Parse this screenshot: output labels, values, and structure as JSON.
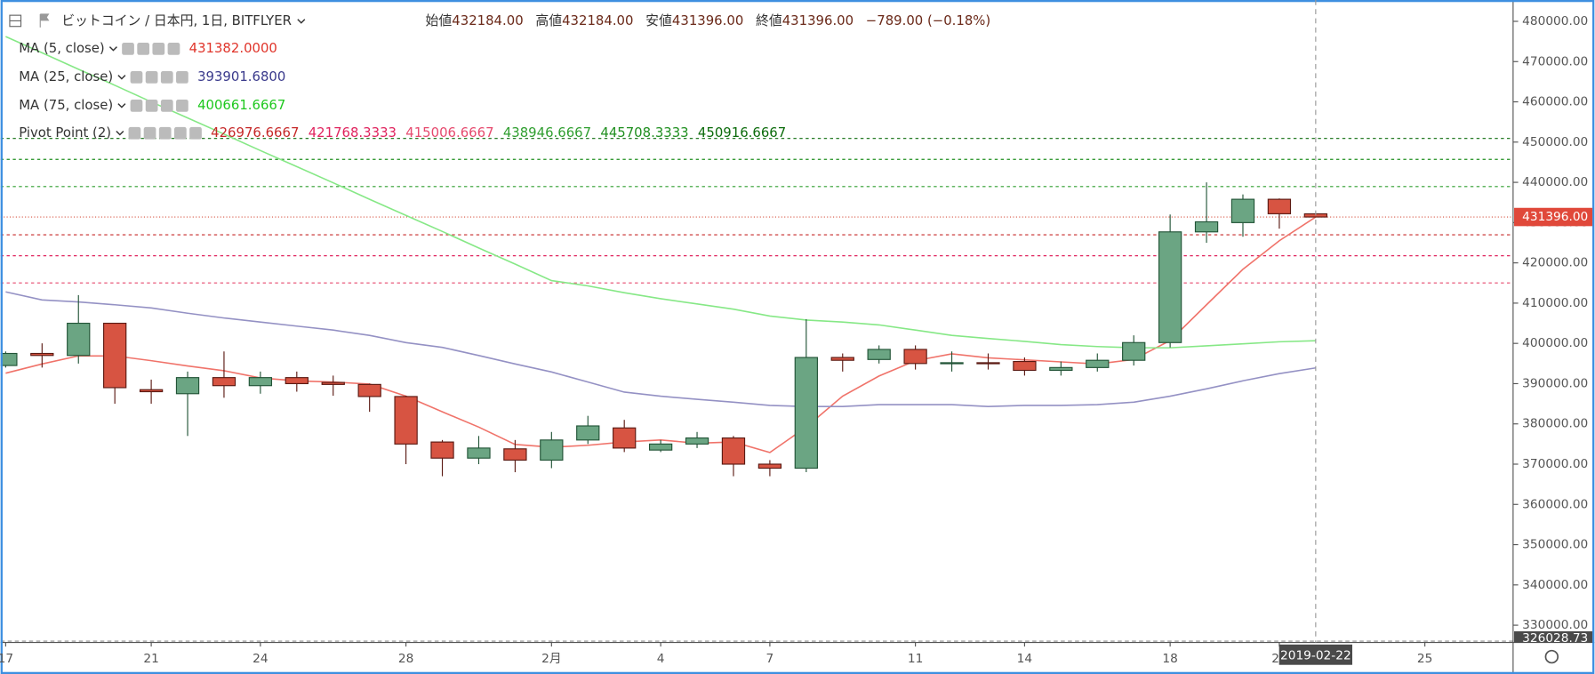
{
  "chart_data": {
    "type": "candlestick",
    "title": "ビットコイン / 日本円, 1日, BITFLYER",
    "ohlc_header": [
      {
        "label": "始値",
        "value": "432184.00"
      },
      {
        "label": "高値",
        "value": "432184.00"
      },
      {
        "label": "安値",
        "value": "431396.00"
      },
      {
        "label": "終値",
        "value": "431396.00"
      }
    ],
    "change": "−789.00 (−0.18%)",
    "categories": [
      "17",
      null,
      null,
      null,
      "21",
      null,
      null,
      "24",
      null,
      null,
      null,
      "28",
      null,
      null,
      null,
      "2月",
      null,
      null,
      "4",
      null,
      null,
      "7",
      null,
      null,
      null,
      "11",
      null,
      null,
      "14",
      null,
      null,
      null,
      "18",
      null,
      null,
      "21",
      null,
      null,
      null,
      "25",
      null,
      null
    ],
    "open": [
      394500,
      397500,
      397000,
      405000,
      388500,
      387500,
      391500,
      389500,
      391500,
      390300,
      389800,
      386800,
      375500,
      371500,
      373800,
      371000,
      376000,
      379000,
      373500,
      375000,
      376500,
      370000,
      369000,
      396500,
      396000,
      398500,
      395000,
      395200,
      395500,
      393300,
      394000,
      395800,
      400200,
      427700,
      430000,
      435800,
      432184,
      null,
      null,
      null,
      null,
      null
    ],
    "high": [
      398000,
      400000,
      412000,
      405000,
      391000,
      393000,
      398000,
      393000,
      393000,
      392000,
      390000,
      387000,
      376000,
      377000,
      376000,
      378000,
      382000,
      381000,
      376000,
      378000,
      377000,
      371000,
      406000,
      397500,
      399500,
      399500,
      398000,
      397500,
      396500,
      395500,
      397500,
      402000,
      432000,
      440000,
      437000,
      436000,
      432184,
      null,
      null,
      null,
      null,
      null
    ],
    "low": [
      394000,
      394000,
      395000,
      385000,
      385000,
      377000,
      386500,
      387500,
      388000,
      387000,
      383000,
      370000,
      367000,
      370000,
      368000,
      369000,
      375000,
      373000,
      373000,
      374000,
      367000,
      367000,
      368000,
      393000,
      395000,
      393500,
      393000,
      393500,
      392000,
      392000,
      393000,
      394500,
      399000,
      425000,
      426500,
      428500,
      431396,
      null,
      null,
      null,
      null,
      null
    ],
    "close": [
      397500,
      397000,
      405000,
      389000,
      388000,
      391500,
      389500,
      391500,
      390000,
      389800,
      386800,
      375000,
      371500,
      374000,
      371000,
      376000,
      379500,
      374000,
      375000,
      376500,
      370000,
      369000,
      396500,
      395800,
      398500,
      395000,
      395200,
      395000,
      393300,
      394000,
      395800,
      400200,
      427700,
      430200,
      435800,
      432200,
      431396,
      null,
      null,
      null,
      null,
      null
    ],
    "up_color": "#6ba583",
    "down_color": "#d75442",
    "indicators": [
      {
        "name": "MA (5, close)",
        "value_label": "431382.0000",
        "color": "#e0352b",
        "line_color": "#f0736a",
        "values": [
          392600,
          394900,
          396900,
          396900,
          395700,
          394400,
          393200,
          391400,
          390700,
          390400,
          389900,
          386900,
          383000,
          379200,
          374900,
          374200,
          374700,
          375500,
          376000,
          375200,
          375500,
          372900,
          379200,
          386900,
          391900,
          395700,
          397400,
          396400,
          395900,
          395400,
          394900,
          396000,
          400700,
          409600,
          418400,
          425500,
          431382,
          null,
          null,
          null,
          null,
          null
        ]
      },
      {
        "name": "MA (25, close)",
        "value_label": "393901.6800",
        "color": "#3a3a8c",
        "line_color": "#9491c4",
        "values": [
          412800,
          410800,
          410300,
          409600,
          408800,
          407500,
          406300,
          405300,
          404300,
          403300,
          402000,
          400200,
          399000,
          397000,
          394900,
          392900,
          390400,
          387900,
          386900,
          386100,
          385400,
          384600,
          384300,
          384300,
          384800,
          384800,
          384800,
          384300,
          384600,
          384600,
          384800,
          385400,
          386900,
          388700,
          390700,
          392500,
          393901.68,
          null,
          null,
          null,
          null,
          null
        ]
      },
      {
        "name": "MA (75, close)",
        "value_label": "400661.6667",
        "color": "#1ec81e",
        "line_color": "#86e886",
        "values": [
          476200,
          472200,
          468100,
          464100,
          460000,
          456000,
          452000,
          447900,
          443900,
          439900,
          435800,
          431800,
          427800,
          423700,
          419700,
          415600,
          414300,
          412600,
          411100,
          409800,
          408500,
          406800,
          405800,
          405300,
          404600,
          403300,
          402000,
          401200,
          400500,
          399700,
          399200,
          398900,
          398900,
          399400,
          399900,
          400400,
          400661.6667,
          null,
          null,
          null,
          null,
          null
        ]
      }
    ],
    "pivot": {
      "name": "Pivot Point (2)",
      "levels": [
        426976.6667,
        421768.3333,
        415006.6667,
        438946.6667,
        445708.3333,
        450916.6667
      ],
      "colors": [
        "#c62828",
        "#e0245e",
        "#e64a6e",
        "#2e9e2e",
        "#1f8f1f",
        "#0b6b0b"
      ]
    },
    "ylim": [
      325700,
      485300
    ],
    "yticks": [
      {
        "value": 330000,
        "label": "330000.00"
      },
      {
        "value": 340000,
        "label": "340000.00"
      },
      {
        "value": 350000,
        "label": "350000.00"
      },
      {
        "value": 360000,
        "label": "360000.00"
      },
      {
        "value": 370000,
        "label": "370000.00"
      },
      {
        "value": 380000,
        "label": "380000.00"
      },
      {
        "value": 390000,
        "label": "390000.00"
      },
      {
        "value": 400000,
        "label": "400000.00"
      },
      {
        "value": 410000,
        "label": "410000.00"
      },
      {
        "value": 420000,
        "label": "420000.00"
      },
      {
        "value": 430000,
        "label": "430000.00"
      },
      {
        "value": 440000,
        "label": "440000.00"
      },
      {
        "value": 450000,
        "label": "450000.00"
      },
      {
        "value": 460000,
        "label": "460000.00"
      },
      {
        "value": 470000,
        "label": "470000.00"
      },
      {
        "value": 480000,
        "label": "480000.00"
      }
    ],
    "last_price": {
      "value": 431396,
      "label": "431396.00"
    },
    "low_line": {
      "value": 326028.73,
      "label": "326028.73"
    },
    "cursor_date": "2019-02-22",
    "cursor_index": 36
  }
}
